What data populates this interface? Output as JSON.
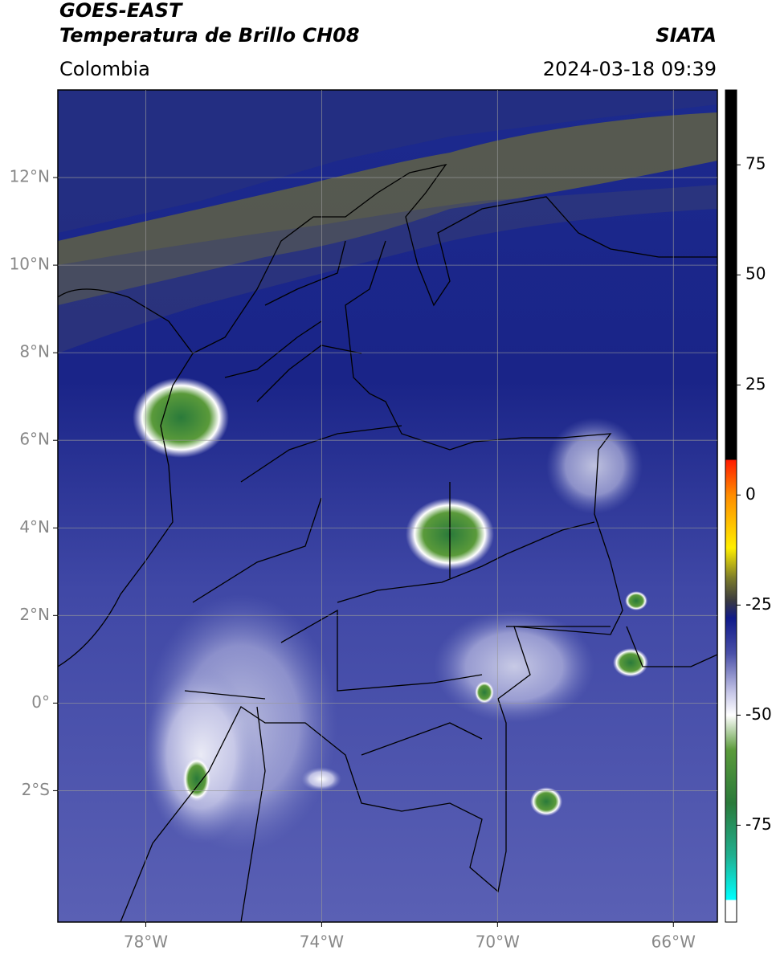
{
  "header": {
    "title": "GOES-EAST",
    "subtitle": "Temperatura de Brillo CH08",
    "source": "SIATA",
    "region": "Colombia",
    "datetime": "2024-03-18 09:39"
  },
  "map": {
    "xlim": [
      -80,
      -65
    ],
    "ylim": [
      -5,
      14
    ],
    "xticks": [
      {
        "value": -78,
        "label": "78°W"
      },
      {
        "value": -74,
        "label": "74°W"
      },
      {
        "value": -70,
        "label": "70°W"
      },
      {
        "value": -66,
        "label": "66°W"
      }
    ],
    "yticks": [
      {
        "value": 12,
        "label": "12°N"
      },
      {
        "value": 10,
        "label": "10°N"
      },
      {
        "value": 8,
        "label": "8°N"
      },
      {
        "value": 6,
        "label": "6°N"
      },
      {
        "value": 4,
        "label": "4°N"
      },
      {
        "value": 2,
        "label": "2°N"
      },
      {
        "value": 0,
        "label": "0°"
      },
      {
        "value": -2,
        "label": "2°S"
      }
    ],
    "grid": true
  },
  "colorbar": {
    "lim": [
      -97,
      92
    ],
    "ticks": [
      75,
      50,
      25,
      0,
      -25,
      -50,
      -75
    ],
    "stops": [
      {
        "value": 92,
        "color": "#000000"
      },
      {
        "value": 8,
        "color": "#000000"
      },
      {
        "value": 8,
        "color": "#ff1a00"
      },
      {
        "value": 0,
        "color": "#ff8c00"
      },
      {
        "value": -12,
        "color": "#ffee00"
      },
      {
        "value": -19,
        "color": "#7a7a2a"
      },
      {
        "value": -24,
        "color": "#3a3a40"
      },
      {
        "value": -28,
        "color": "#101a8a"
      },
      {
        "value": -36,
        "color": "#4a50a8"
      },
      {
        "value": -45,
        "color": "#c8c8e8"
      },
      {
        "value": -50,
        "color": "#ffffff"
      },
      {
        "value": -58,
        "color": "#5a9a3a"
      },
      {
        "value": -70,
        "color": "#2a7a3a"
      },
      {
        "value": -82,
        "color": "#20b090"
      },
      {
        "value": -92,
        "color": "#00ffff"
      },
      {
        "value": -92,
        "color": "#ffffff"
      },
      {
        "value": -97,
        "color": "#ffffff"
      }
    ]
  }
}
